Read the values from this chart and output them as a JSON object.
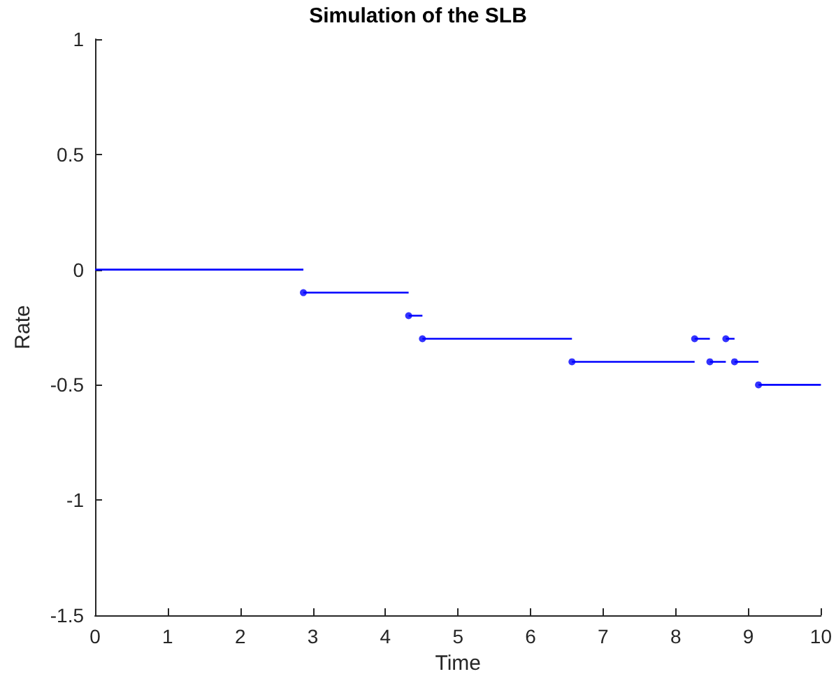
{
  "chart_data": {
    "type": "step",
    "title": "Simulation of the SLB",
    "xlabel": "Time",
    "ylabel": "Rate",
    "xlim": [
      0,
      10
    ],
    "xticks": [
      0,
      1,
      2,
      3,
      4,
      5,
      6,
      7,
      8,
      9,
      10
    ],
    "ylim": [
      -1.5,
      1
    ],
    "yticks": [
      -1.5,
      -1,
      -0.5,
      0,
      0.5,
      1
    ],
    "grid": false,
    "series": [
      {
        "color": "#0000ff",
        "marker": "none",
        "x": [
          0,
          2.87,
          4.32,
          4.51,
          6.57,
          8.26,
          8.47,
          8.69,
          8.81,
          9.14,
          10
        ],
        "values": [
          0,
          -0.1,
          -0.2,
          -0.3,
          -0.4,
          -0.3,
          -0.4,
          -0.3,
          -0.4,
          -0.5,
          -0.5
        ]
      },
      {
        "type": "scatter",
        "color": "#0000ff",
        "marker": "circle",
        "x": [
          2.87,
          4.32,
          4.51,
          6.57,
          8.26,
          8.47,
          8.69,
          8.81,
          9.14
        ],
        "values": [
          -0.1,
          -0.2,
          -0.3,
          -0.4,
          -0.3,
          -0.4,
          -0.3,
          -0.4,
          -0.5
        ]
      }
    ]
  }
}
